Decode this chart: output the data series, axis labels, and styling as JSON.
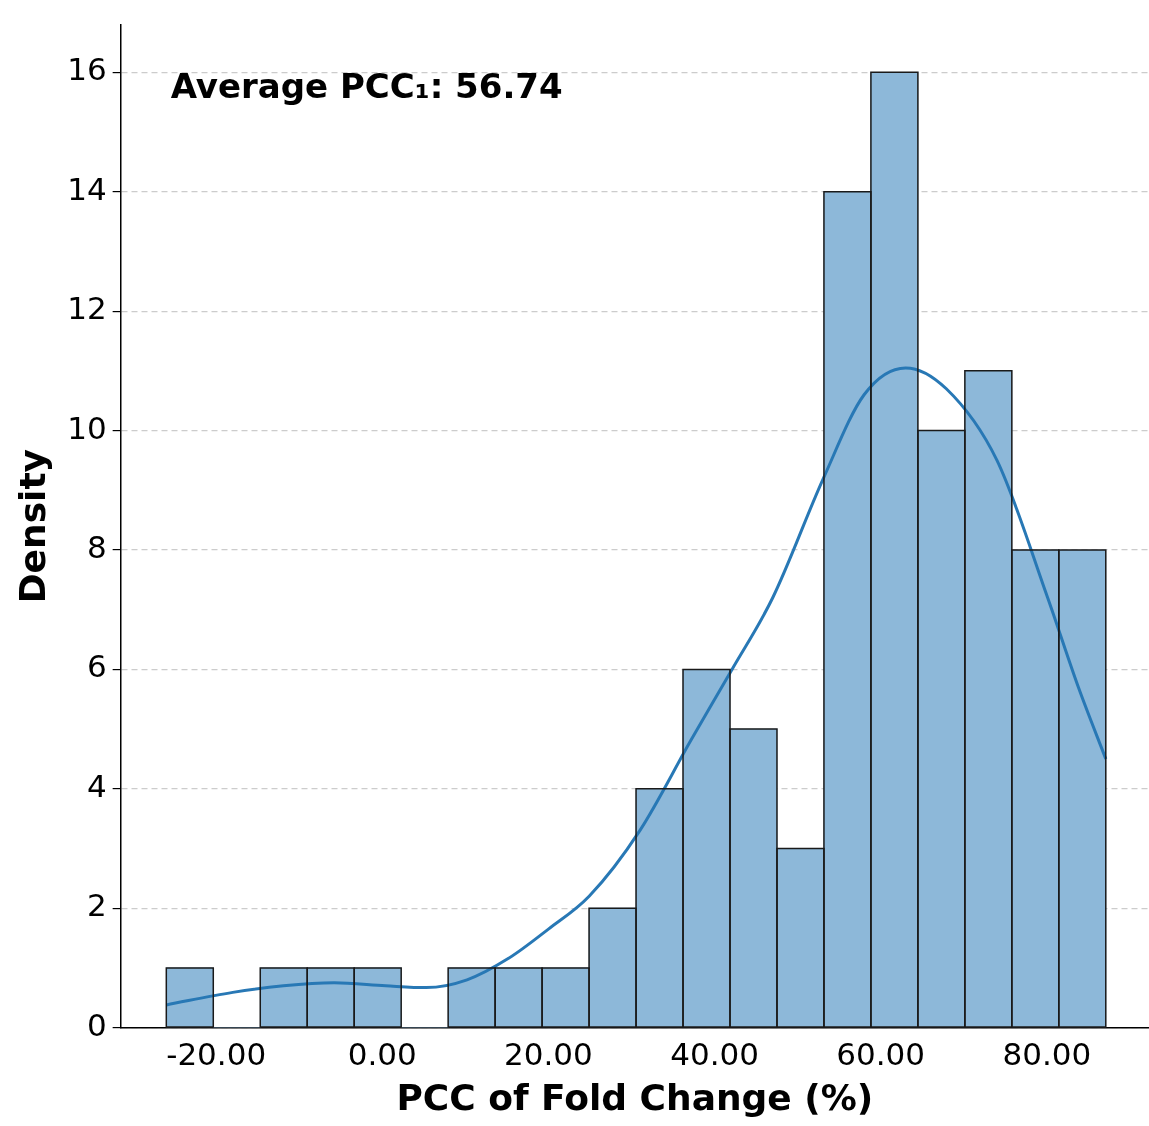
{
  "chart_data": {
    "type": "histogram",
    "xlabel": "PCC of Fold Change (%)",
    "ylabel": "Density",
    "bins": [
      -26.0,
      -20.35,
      -14.69,
      -9.04,
      -3.38,
      2.27,
      7.93,
      13.58,
      19.24,
      24.89,
      30.55,
      36.2,
      41.86,
      47.51,
      53.17,
      58.82,
      64.48,
      70.13,
      75.79,
      81.44,
      87.1
    ],
    "series": [
      {
        "type": "histogram",
        "color": "#8db8d9",
        "values": [
          1,
          0,
          1,
          1,
          1,
          0,
          1,
          1,
          1,
          2,
          4,
          6,
          5,
          3,
          14,
          16,
          10,
          11,
          8,
          8
        ]
      },
      {
        "type": "line",
        "color": "#2878b5",
        "x": [
          -26.0,
          -18.0,
          -11.9,
          -5.8,
          0.4,
          5.3,
          10.2,
          15.2,
          20.0,
          24.9,
          31.0,
          37.1,
          42.1,
          47.0,
          53.1,
          58.0,
          63.0,
          67.9,
          74.0,
          80.1,
          83.8,
          87.1
        ],
        "values": [
          0.38,
          0.59,
          0.7,
          0.75,
          0.7,
          0.67,
          0.8,
          1.16,
          1.65,
          2.2,
          3.3,
          4.8,
          6.0,
          7.2,
          9.2,
          10.6,
          11.05,
          10.7,
          9.5,
          7.2,
          5.7,
          4.5
        ]
      }
    ],
    "xlim": [
      -31.5,
      92.3
    ],
    "ylim": [
      0,
      16.8
    ],
    "xticks": [
      {
        "value": -20,
        "label": "-20.00"
      },
      {
        "value": 0,
        "label": "0.00"
      },
      {
        "value": 20,
        "label": "20.00"
      },
      {
        "value": 40,
        "label": "40.00"
      },
      {
        "value": 60,
        "label": "60.00"
      },
      {
        "value": 80,
        "label": "80.00"
      }
    ],
    "yticks": [
      0,
      2,
      4,
      6,
      8,
      10,
      12,
      14,
      16
    ],
    "grid": "y",
    "marker": "none",
    "annotations": [
      "Average PCC₁: 56.74"
    ]
  }
}
